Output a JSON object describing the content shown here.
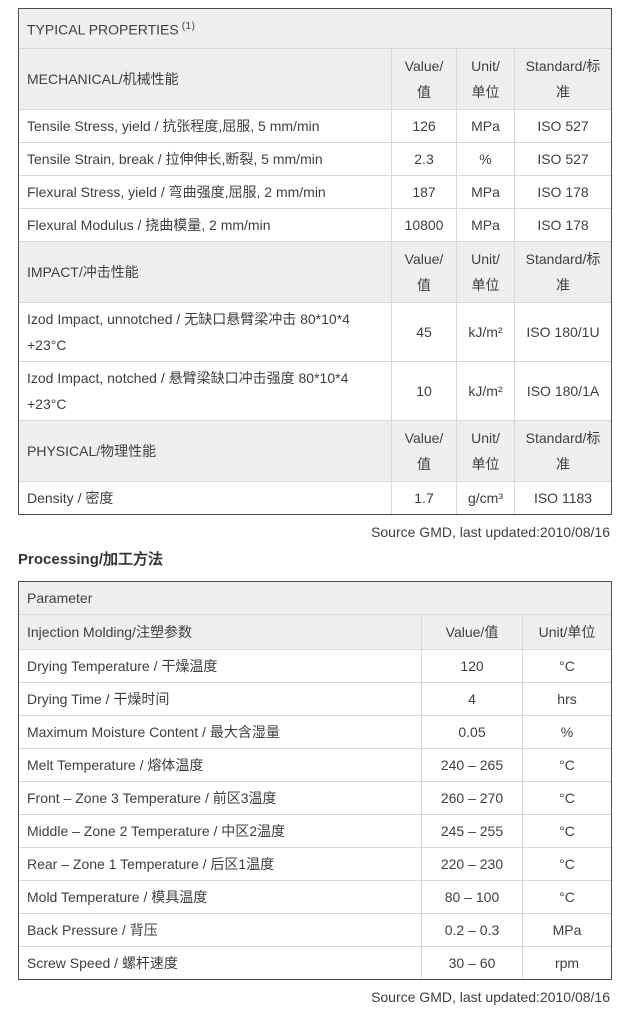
{
  "colors": {
    "header_row_bg": "#efefef",
    "outer_border": "#4d4d4d",
    "inner_border": "#d9d9d9",
    "text": "#3f3f3f"
  },
  "typical_properties": {
    "title": "TYPICAL PROPERTIES",
    "title_superscript": "(1)",
    "columns": {
      "value": "Value/值",
      "unit": "Unit/单位",
      "standard": "Standard/标准"
    },
    "sections": [
      {
        "header": "MECHANICAL/机械性能",
        "rows": [
          {
            "property": "Tensile Stress, yield / 抗张程度,屈服, 5 mm/min",
            "value": "126",
            "unit": "MPa",
            "standard": "ISO 527"
          },
          {
            "property": "Tensile Strain, break / 拉伸伸长,断裂, 5 mm/min",
            "value": "2.3",
            "unit": "%",
            "standard": "ISO 527"
          },
          {
            "property": "Flexural Stress, yield / 弯曲强度,屈服, 2 mm/min",
            "value": "187",
            "unit": "MPa",
            "standard": "ISO 178"
          },
          {
            "property": "Flexural Modulus / 挠曲模量, 2 mm/min",
            "value": "10800",
            "unit": "MPa",
            "standard": "ISO 178"
          }
        ]
      },
      {
        "header": "IMPACT/冲击性能",
        "rows": [
          {
            "property": "Izod Impact, unnotched / 无缺口悬臂梁冲击 80*10*4 +23°C",
            "value": "45",
            "unit": "kJ/m²",
            "standard": "ISO 180/1U"
          },
          {
            "property": "Izod Impact, notched / 悬臂梁缺口冲击强度 80*10*4 +23°C",
            "value": "10",
            "unit": "kJ/m²",
            "standard": "ISO 180/1A"
          }
        ]
      },
      {
        "header": "PHYSICAL/物理性能",
        "rows": [
          {
            "property": "Density / 密度",
            "value": "1.7",
            "unit": "g/cm³",
            "standard": "ISO 1183"
          }
        ]
      }
    ],
    "source_note": "Source GMD, last updated:2010/08/16"
  },
  "processing": {
    "heading": "Processing/加工方法",
    "table_title": "Parameter",
    "header": {
      "label": "Injection Molding/注塑参数",
      "value": "Value/值",
      "unit": "Unit/单位"
    },
    "rows": [
      {
        "property": "Drying Temperature / 干燥温度",
        "value": "120",
        "unit": "°C"
      },
      {
        "property": "Drying Time / 干燥时间",
        "value": "4",
        "unit": "hrs"
      },
      {
        "property": "Maximum Moisture Content / 最大含湿量",
        "value": "0.05",
        "unit": "%"
      },
      {
        "property": "Melt Temperature / 熔体温度",
        "value": "240 – 265",
        "unit": "°C"
      },
      {
        "property": "Front – Zone 3 Temperature / 前区3温度",
        "value": "260 – 270",
        "unit": "°C"
      },
      {
        "property": "Middle – Zone 2 Temperature / 中区2温度",
        "value": "245 – 255",
        "unit": "°C"
      },
      {
        "property": "Rear – Zone 1 Temperature / 后区1温度",
        "value": "220 – 230",
        "unit": "°C"
      },
      {
        "property": "Mold Temperature / 模具温度",
        "value": "80 – 100",
        "unit": "°C"
      },
      {
        "property": "Back Pressure / 背压",
        "value": "0.2 – 0.3",
        "unit": "MPa"
      },
      {
        "property": "Screw Speed / 螺杆速度",
        "value": "30 – 60",
        "unit": "rpm"
      }
    ],
    "source_note": "Source GMD, last updated:2010/08/16"
  }
}
